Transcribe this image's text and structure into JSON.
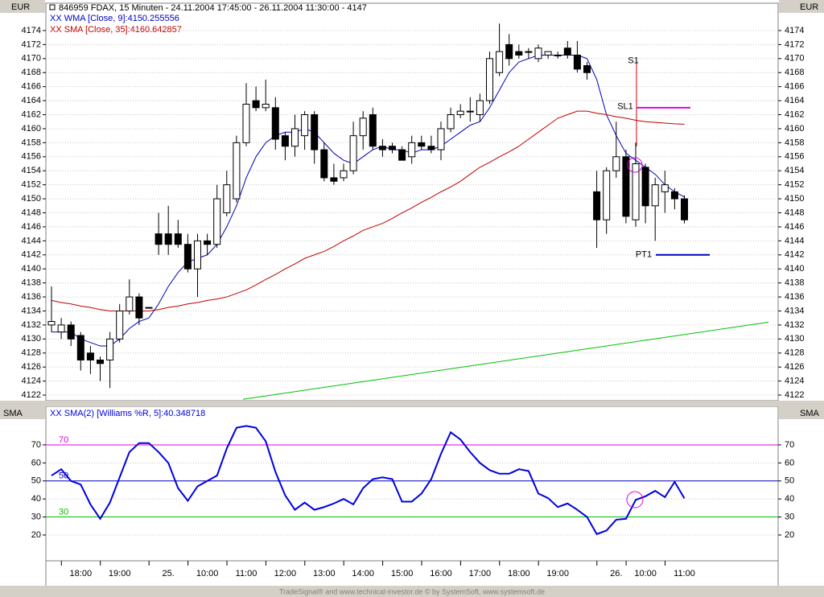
{
  "title": "846959  FDAX, 15 Minuten - 24.11.2004 17:45:00 - 26.11.2004 11:30:00 - 4147",
  "footer": "TradeSignal® and www.technical-investor.de © by SystemSoft, www.systemsoft.de",
  "chart_data": [
    {
      "type": "candlestick",
      "axis_label": "EUR",
      "categories": [
        null,
        null,
        null,
        "18:00",
        null,
        null,
        null,
        "19:00",
        null,
        null,
        null,
        null,
        "25.",
        null,
        null,
        null,
        "10:00",
        null,
        null,
        null,
        "11:00",
        null,
        null,
        null,
        "12:00",
        null,
        null,
        null,
        "13:00",
        null,
        null,
        null,
        "14:00",
        null,
        null,
        null,
        "15:00",
        null,
        null,
        null,
        "16:00",
        null,
        null,
        null,
        "17:00",
        null,
        null,
        null,
        "18:00",
        null,
        null,
        null,
        "19:00",
        null,
        null,
        null,
        null,
        null,
        "26.",
        null,
        null,
        "10:00",
        null,
        null,
        null,
        "11:00"
      ],
      "open": [
        4132,
        4131,
        4132,
        4130.5,
        4128,
        4127,
        4127,
        4130,
        4134,
        4136,
        4134.5,
        4145,
        4145,
        4145,
        4143.5,
        4140,
        4144,
        4143.5,
        4148,
        4150,
        4158,
        4164,
        4163,
        4163,
        4159,
        4157.5,
        4159,
        4162,
        4157,
        4153,
        4153,
        4154,
        4159,
        4162,
        4157.5,
        4157.5,
        4157,
        4156,
        4158,
        4157.5,
        4157,
        4160,
        4162,
        4162.5,
        4162,
        4164,
        4168,
        4172,
        4171,
        4171,
        4170,
        4170.5,
        4170.5,
        4171.5,
        4170.5,
        4169,
        4151,
        4147,
        4154,
        4156,
        4147,
        4154.5,
        4149,
        4151,
        4151,
        4150
      ],
      "high": [
        4137.5,
        4133,
        4132.5,
        4131,
        4129,
        4127.5,
        4131,
        4135,
        4138.5,
        4136.5,
        4134.5,
        4148,
        4149,
        4147,
        4145,
        4145,
        4145,
        4152,
        4154,
        4159,
        4166.5,
        4166,
        4167,
        4164.5,
        4159.5,
        4162,
        4162.5,
        4162.5,
        4158,
        4155,
        4155,
        4161,
        4162.5,
        4163,
        4158.5,
        4158,
        4157.5,
        4159,
        4159,
        4159,
        4161,
        4163,
        4163.5,
        4164.5,
        4165,
        4171,
        4175,
        4173.5,
        4172,
        4171.5,
        4172,
        4171,
        4171,
        4172.5,
        4172.5,
        4169.5,
        4154,
        4154.5,
        4161,
        4157,
        4158,
        4155,
        4153,
        4154,
        4151.5,
        4150.5
      ],
      "low": [
        4131,
        4130,
        4129,
        4125.5,
        4125,
        4124,
        4123,
        4129.5,
        4133.5,
        4132,
        4134.5,
        4142,
        4142,
        4143,
        4139.5,
        4136,
        4142,
        4143,
        4147.5,
        4149.5,
        4157.5,
        4162.5,
        4162.5,
        4157,
        4155.5,
        4156,
        4157,
        4155,
        4152.5,
        4152,
        4152.5,
        4153.5,
        4157,
        4157,
        4156,
        4156.5,
        4155.5,
        4155,
        4157,
        4156.5,
        4155.5,
        4159.5,
        4161.5,
        4161,
        4161,
        4163.5,
        4167.5,
        4169,
        4170,
        4170,
        4169.5,
        4170,
        4170,
        4170,
        4168,
        4167,
        4143,
        4145,
        4153,
        4146.5,
        4146,
        4146.5,
        4144,
        4148,
        4148.5,
        4146.5
      ],
      "close": [
        4132.5,
        4132,
        4130,
        4127,
        4127,
        4126.5,
        4130,
        4134,
        4136,
        4133,
        4134.5,
        4143.5,
        4143.5,
        4143.5,
        4140,
        4144,
        4143.5,
        4150,
        4152,
        4158,
        4163.5,
        4163,
        4163.5,
        4158.5,
        4157.5,
        4160,
        4162,
        4157,
        4153,
        4152.5,
        4154,
        4159,
        4161.5,
        4157.5,
        4157,
        4157,
        4155.5,
        4158,
        4157.5,
        4157,
        4160,
        4162,
        4162.5,
        4162.5,
        4164,
        4170,
        4171,
        4170,
        4170.5,
        4171,
        4171.5,
        4171,
        4170.5,
        4170.5,
        4168.5,
        4168,
        4147,
        4154,
        4156,
        4147.5,
        4155,
        4149,
        4152,
        4152,
        4150,
        4147
      ],
      "series": [
        {
          "name": "XX WMA [Close, 9]:4150.255556",
          "color": "#0000c0",
          "values": [
            4131,
            4131,
            4131,
            4130,
            4129.5,
            4129,
            4129,
            4130,
            4131.5,
            4132.5,
            4133,
            4135,
            4137.5,
            4139.5,
            4141,
            4141.5,
            4142,
            4143.5,
            4146,
            4149,
            4153,
            4156,
            4158,
            4159,
            4159.5,
            4159.5,
            4160,
            4159.5,
            4158,
            4156.5,
            4155.5,
            4155,
            4156,
            4157,
            4157.5,
            4157,
            4157,
            4156.5,
            4157,
            4157,
            4157.5,
            4158.5,
            4159.5,
            4160.5,
            4161,
            4163,
            4165.5,
            4168,
            4169.5,
            4170,
            4170.5,
            4170.5,
            4170.5,
            4170.5,
            4170.5,
            4170,
            4167,
            4162,
            4159,
            4156.5,
            4155.5,
            4154.5,
            4153.5,
            4152,
            4151,
            4150.255556
          ]
        },
        {
          "name": "XX SMA [Close, 35]:4160.642857",
          "color": "#c00000",
          "values": [
            4135.5,
            4135.2,
            4135,
            4134.7,
            4134.5,
            4134.2,
            4134,
            4134,
            4134,
            4134,
            4134,
            4134.2,
            4134.5,
            4134.7,
            4135,
            4135.2,
            4135.5,
            4135.7,
            4136,
            4136.5,
            4137,
            4137.7,
            4138.5,
            4139.2,
            4140,
            4140.7,
            4141.5,
            4142,
            4142.5,
            4143.2,
            4144,
            4144.7,
            4145.5,
            4146,
            4146.5,
            4147.2,
            4148,
            4148.7,
            4149.5,
            4150.2,
            4151,
            4151.7,
            4152.5,
            4153.5,
            4154.5,
            4155.2,
            4156,
            4156.7,
            4157.5,
            4158.5,
            4159.5,
            4160.5,
            4161.5,
            4162,
            4162.5,
            4162.5,
            4162.2,
            4162,
            4161.7,
            4161.5,
            4161.2,
            4161,
            4160.9,
            4160.8,
            4160.7,
            4160.642857
          ]
        }
      ],
      "signals": [
        {
          "label": "S1",
          "values": [
            4170,
            4157.5
          ],
          "color": "#d00000"
        },
        {
          "label": "SL1",
          "values": [
            4163
          ],
          "color": "#e000e0"
        },
        {
          "label": "PT1",
          "values": [
            4142
          ],
          "color": "#0000c0"
        }
      ],
      "trendline": {
        "values": [
          4121.4,
          4132.4
        ],
        "color": "#00c000"
      },
      "ylim": [
        4121.2,
        4177.9
      ],
      "yticks": [
        4122,
        4124,
        4126,
        4128,
        4130,
        4132,
        4134,
        4136,
        4138,
        4140,
        4142,
        4144,
        4146,
        4148,
        4150,
        4152,
        4154,
        4156,
        4158,
        4160,
        4162,
        4164,
        4166,
        4168,
        4170,
        4172,
        4174
      ],
      "grid": true
    },
    {
      "type": "line",
      "axis_label": "SMA",
      "series": [
        {
          "name": "XX SMA(2) [Williams %R, 5]:40.348718",
          "color": "#0000e0",
          "values": [
            53,
            56.5,
            50,
            48,
            37,
            29,
            38,
            52,
            66,
            71,
            71,
            66,
            60,
            46,
            39,
            47,
            50,
            53,
            68,
            79.5,
            80.5,
            79.5,
            72,
            55,
            42,
            34,
            38,
            34,
            35.5,
            37.5,
            40,
            37,
            46,
            51,
            52,
            51,
            38.5,
            38.5,
            43,
            51,
            65,
            77,
            73,
            66,
            60,
            56,
            54,
            54,
            56.5,
            55.5,
            43,
            40.5,
            35.5,
            37.5,
            34,
            30,
            20.5,
            22.5,
            28.5,
            29,
            39.5,
            41.5,
            44.5,
            41,
            49.5,
            40.348718
          ]
        }
      ],
      "levels": [
        70,
        50,
        30
      ],
      "level_colors": [
        "#e000e0",
        "#0000c0",
        "#00c000"
      ],
      "ylim": [
        5.7,
        91.4
      ],
      "yticks": [
        20,
        30,
        40,
        50,
        60,
        70
      ],
      "grid": true
    }
  ]
}
